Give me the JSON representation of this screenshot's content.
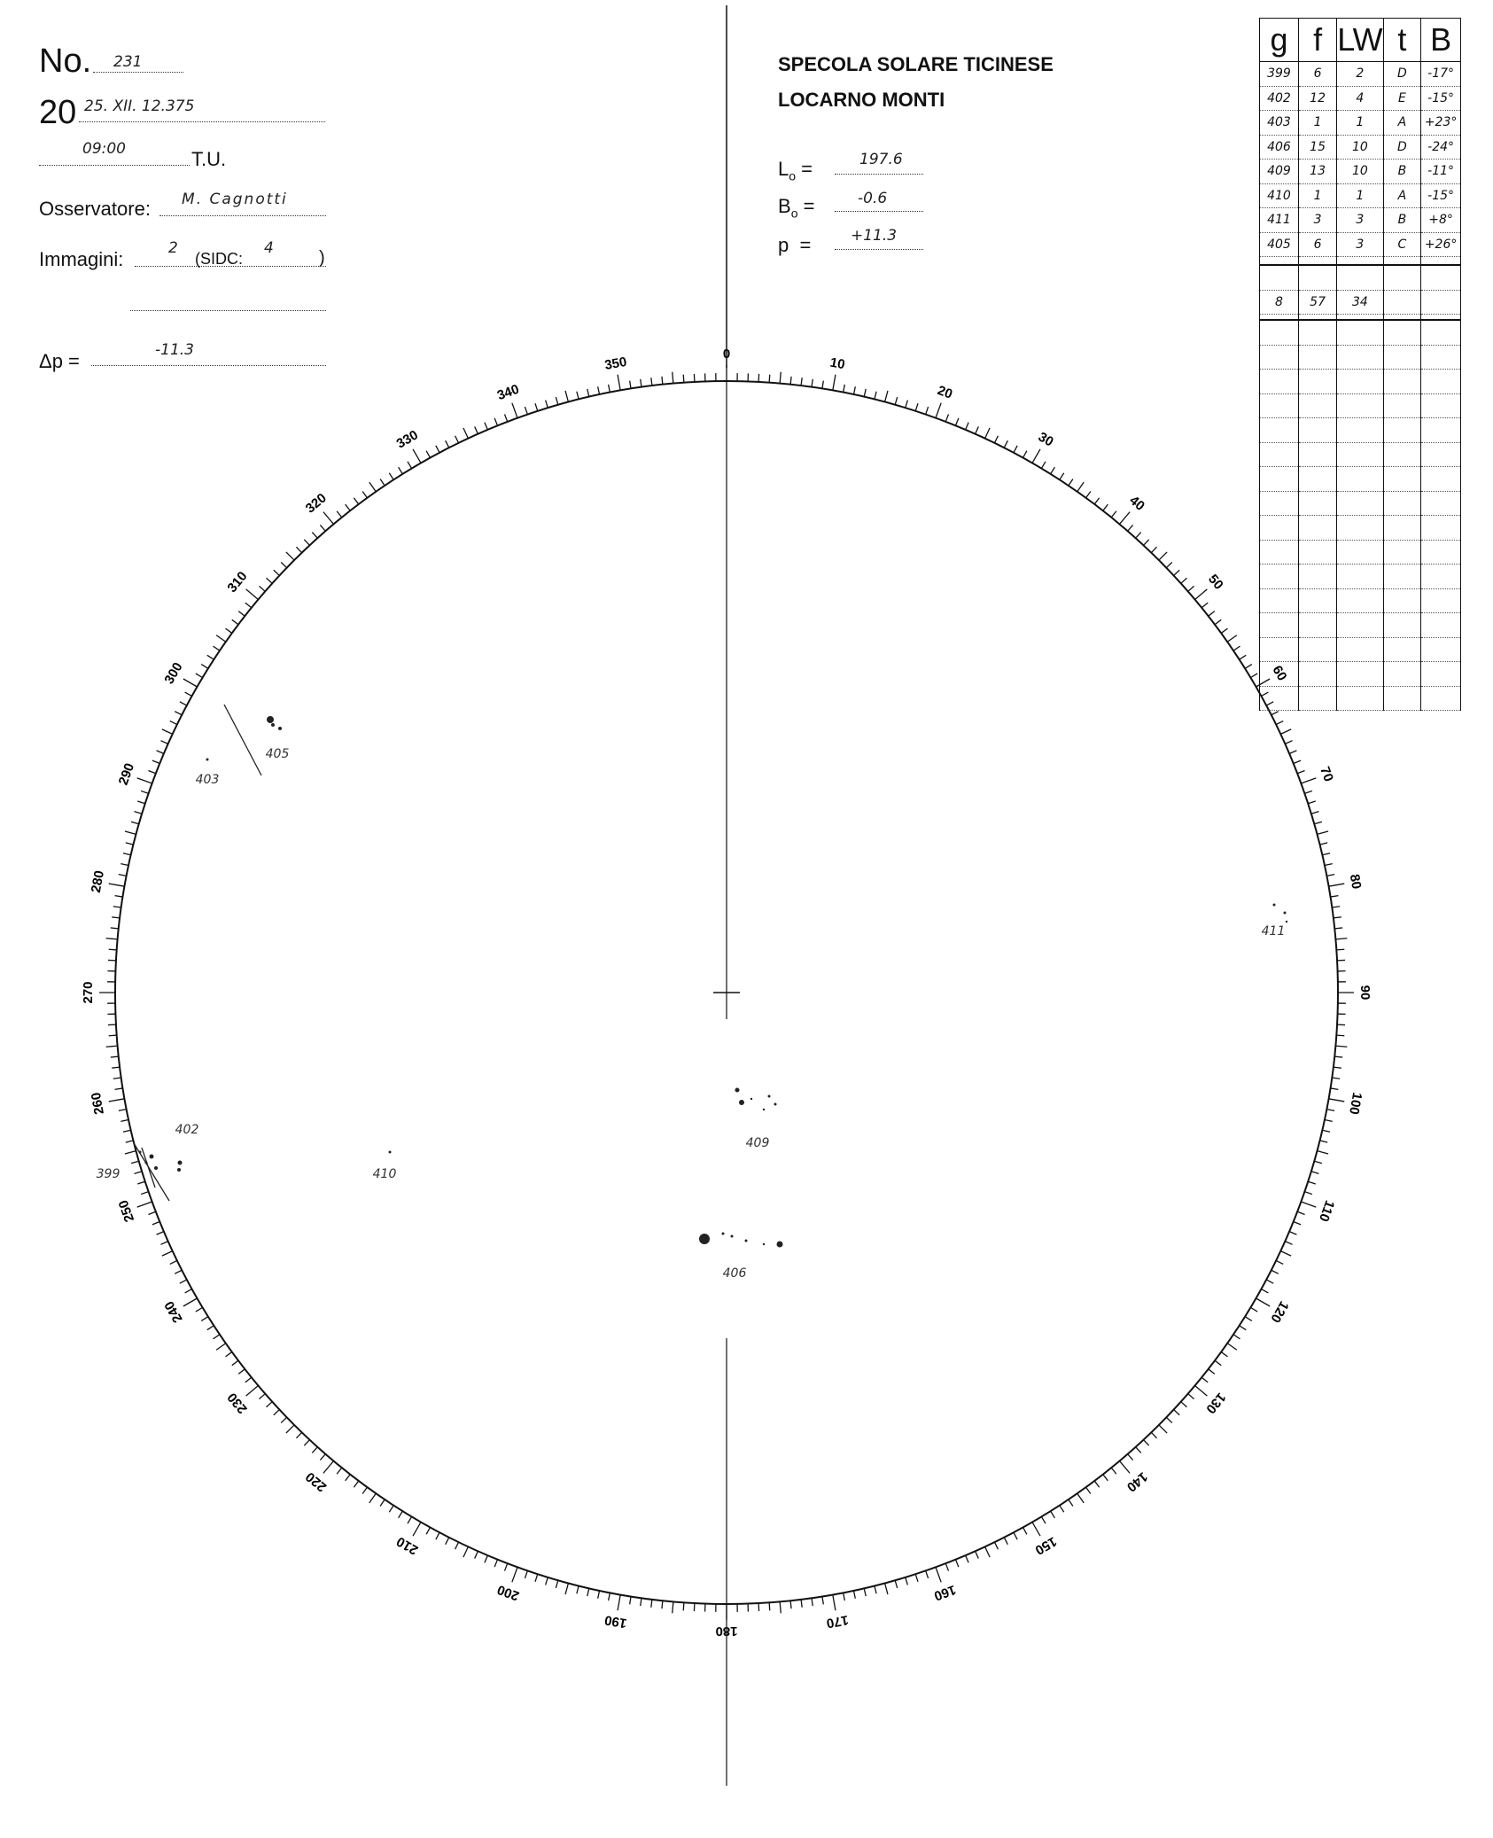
{
  "header": {
    "no_label": "No.",
    "no_value": "231",
    "year_prefix": "20",
    "date_value": "25. XII. 12.375",
    "time_value": "09:00",
    "time_suffix": "T.U.",
    "observer_label": "Osservatore:",
    "observer_value": "M. Cagnotti",
    "images_label": "Immagini:",
    "images_value": "2",
    "sidc_label": "(SIDC:",
    "sidc_value": "4",
    "sidc_close": ")",
    "dp_label": "Δp  =",
    "dp_value": "-11.3"
  },
  "institution": {
    "line1": "SPECOLA SOLARE TICINESE",
    "line2": "LOCARNO MONTI",
    "lo_label": "L",
    "lo_sub": "o",
    "lo_value": "197.6",
    "bo_label": "B",
    "bo_sub": "o",
    "bo_value": "-0.6",
    "p_label": "p",
    "p_value": "+11.3",
    "eq": "="
  },
  "table": {
    "columns": [
      "g",
      "f",
      "LW",
      "t",
      "B"
    ],
    "rows": [
      [
        "399",
        "6",
        "2",
        "D",
        "-17°"
      ],
      [
        "402",
        "12",
        "4",
        "E",
        "-15°"
      ],
      [
        "403",
        "1",
        "1",
        "A",
        "+23°"
      ],
      [
        "406",
        "15",
        "10",
        "D",
        "-24°"
      ],
      [
        "409",
        "13",
        "10",
        "B",
        "-11°"
      ],
      [
        "410",
        "1",
        "1",
        "A",
        "-15°"
      ],
      [
        "411",
        "3",
        "3",
        "B",
        "+8°"
      ],
      [
        "405",
        "6",
        "3",
        "C",
        "+26°"
      ]
    ],
    "totals": [
      "8",
      "57",
      "34",
      "",
      ""
    ]
  },
  "disk": {
    "dial_labels": [
      "0",
      "10",
      "20",
      "30",
      "40",
      "50",
      "60",
      "70",
      "80",
      "90",
      "100",
      "110",
      "120",
      "130",
      "140",
      "150",
      "160",
      "170",
      "180",
      "190",
      "200",
      "210",
      "220",
      "230",
      "240",
      "250",
      "260",
      "270",
      "280",
      "290",
      "300",
      "310",
      "320",
      "330",
      "340",
      "350"
    ],
    "groups": [
      {
        "label": "405"
      },
      {
        "label": "403"
      },
      {
        "label": "411"
      },
      {
        "label": "409"
      },
      {
        "label": "406"
      },
      {
        "label": "410"
      },
      {
        "label": "402"
      },
      {
        "label": "399"
      }
    ]
  }
}
